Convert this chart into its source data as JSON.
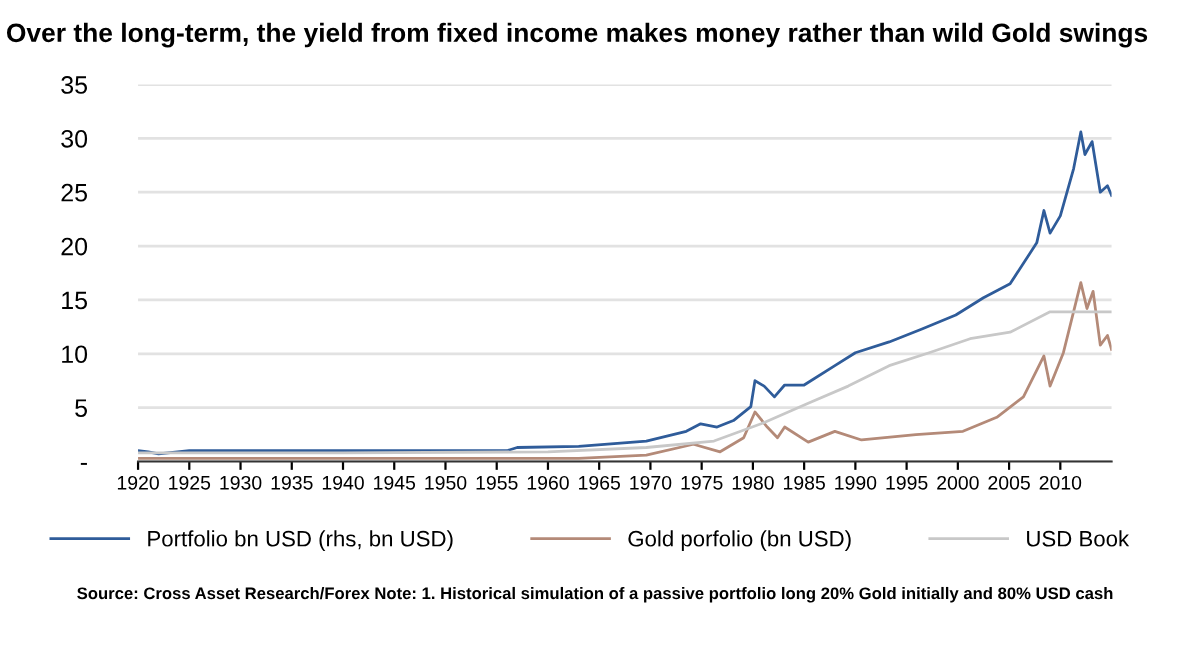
{
  "chart_data": {
    "type": "line",
    "title": "Over the long-term, the yield from fixed income makes money rather than wild Gold swings",
    "annotations": [
      "Source: Cross Asset Research/Forex Note: 1. Historical simulation of a passive portfolio long 20% Gold initially and 80% USD cash"
    ],
    "series": [
      {
        "name": "Portfolio bn USD (rhs, bn USD)",
        "color": "#2f5c9a",
        "x": [
          1920,
          1921,
          1922,
          1925,
          1940,
          1956,
          1957,
          1963,
          1969.6,
          1973.5,
          1974.9,
          1976.5,
          1978.1,
          1979.8,
          1980.2,
          1981.1,
          1982.1,
          1983.1,
          1985,
          1988,
          1990,
          1993.3,
          1996.5,
          1999.8,
          2002.5,
          2005.1,
          2007.7,
          2008.4,
          2009,
          2010,
          2011.3,
          2012,
          2012.4,
          2013.1,
          2013.9,
          2014.6,
          2015
        ],
        "values": [
          1.0,
          0.9,
          0.7,
          1.0,
          1.0,
          1.0,
          1.3,
          1.4,
          1.9,
          2.8,
          3.5,
          3.2,
          3.8,
          5.1,
          7.5,
          7.0,
          6.0,
          7.1,
          7.1,
          8.9,
          10.1,
          11.1,
          12.3,
          13.6,
          15.2,
          16.5,
          20.3,
          23.3,
          21.2,
          22.8,
          27.2,
          30.6,
          28.5,
          29.7,
          25.0,
          25.6,
          24.7
        ]
      },
      {
        "name": "Gold porfolio (bn USD)",
        "color": "#b48a78",
        "x": [
          1920,
          1940,
          1960,
          1963,
          1969.6,
          1974.2,
          1976.8,
          1979.1,
          1980.2,
          1981.4,
          1982.4,
          1983.1,
          1985.4,
          1988,
          1990.6,
          1995.9,
          2000.5,
          2003.8,
          2006.4,
          2008.4,
          2009,
          2010.3,
          2012,
          2012.6,
          2013.2,
          2013.9,
          2014.6,
          2015
        ],
        "values": [
          0.3,
          0.3,
          0.3,
          0.3,
          0.6,
          1.6,
          0.9,
          2.2,
          4.6,
          3.2,
          2.2,
          3.2,
          1.8,
          2.8,
          2.0,
          2.5,
          2.8,
          4.1,
          6.0,
          9.8,
          7.0,
          10.1,
          16.6,
          14.2,
          15.8,
          10.8,
          11.7,
          10.4
        ]
      },
      {
        "name": "USD Book",
        "color": "#c8c8c8",
        "x": [
          1920,
          1940,
          1960,
          1969.6,
          1976.2,
          1980.8,
          1985.4,
          1989.3,
          1993.3,
          1997.2,
          2001.2,
          2005.1,
          2009,
          2015
        ],
        "values": [
          0.8,
          0.8,
          0.9,
          1.3,
          1.9,
          3.5,
          5.4,
          7.0,
          8.9,
          10.1,
          11.4,
          12.0,
          13.9,
          13.9
        ]
      }
    ],
    "xlim": [
      1920,
      2015
    ],
    "xticks": [
      1920,
      1925,
      1930,
      1935,
      1940,
      1945,
      1950,
      1955,
      1960,
      1965,
      1970,
      1975,
      1980,
      1985,
      1990,
      1995,
      2000,
      2005,
      2010
    ],
    "ylim": [
      0,
      35
    ],
    "yticks": [
      {
        "value": 0,
        "label": "-"
      },
      5,
      10,
      15,
      20,
      25,
      30,
      35
    ],
    "grid": "y",
    "legend": "bottom"
  }
}
